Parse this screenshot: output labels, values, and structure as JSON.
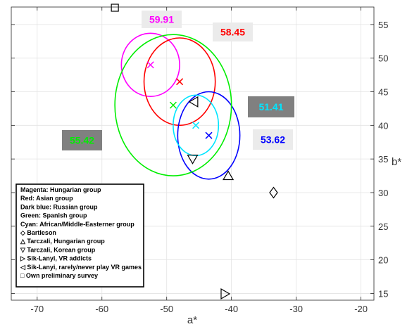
{
  "chart_data": {
    "type": "scatter",
    "title": "",
    "xlabel": "a*",
    "ylabel": "b*",
    "xlim": [
      -74,
      -18
    ],
    "ylim": [
      14,
      57.6
    ],
    "xticks": [
      -70,
      -60,
      -50,
      -40,
      -30,
      -20
    ],
    "yticks": [
      15,
      20,
      25,
      30,
      35,
      40,
      45,
      50,
      55
    ],
    "grid": true,
    "y_axis_side": "right",
    "groups": [
      {
        "name": "Magenta: Hungarian group",
        "color": "#ff00ff",
        "center": [
          -52.5,
          49.0
        ],
        "radius": [
          4.5,
          4.7
        ],
        "value_label": "59.91",
        "label_fill": "#ebebeb",
        "label_text_color": "#ff00ff"
      },
      {
        "name": "Red: Asian group",
        "color": "#ff0000",
        "center": [
          -48.0,
          46.5
        ],
        "radius": [
          5.5,
          6.5
        ],
        "value_label": "58.45",
        "label_fill": "#ebebeb",
        "label_text_color": "#ff0000"
      },
      {
        "name": "Dark blue: Russian group",
        "color": "#0000ff",
        "center": [
          -43.5,
          38.5
        ],
        "radius": [
          4.8,
          6.5
        ],
        "value_label": "53.62",
        "label_fill": "#ebebeb",
        "label_text_color": "#0000ff"
      },
      {
        "name": "Green: Spanish group",
        "color": "#00ee00",
        "center": [
          -49.0,
          43.0
        ],
        "radius": [
          9.0,
          10.5
        ],
        "value_label": "55.42",
        "label_fill": "#808080",
        "label_text_color": "#00ee00"
      },
      {
        "name": "Cyan: African/Middle-Easterner group",
        "color": "#00e5ff",
        "center": [
          -45.5,
          40.0
        ],
        "radius": [
          3.5,
          4.5
        ],
        "value_label": "51.41",
        "label_fill": "#808080",
        "label_text_color": "#00e5ff"
      }
    ],
    "markers": [
      {
        "name": "Bartleson",
        "symbol": "diamond",
        "x": -33.5,
        "y": 30.0
      },
      {
        "name": "Tarczali, Hungarian group",
        "symbol": "triangle-up",
        "x": -40.5,
        "y": 32.5
      },
      {
        "name": "Tarczali, Korean group",
        "symbol": "triangle-down",
        "x": -46.0,
        "y": 35.0
      },
      {
        "name": "Sik-Lanyi, VR addicts",
        "symbol": "triangle-right",
        "x": -41.0,
        "y": 14.2
      },
      {
        "name": "Sik-Lanyi, rarely/never play VR games",
        "symbol": "triangle-left",
        "x": -45.8,
        "y": 43.5
      },
      {
        "name": "Own preliminary survey",
        "symbol": "square",
        "x": -58.0,
        "y": 57.6
      }
    ],
    "legend": {
      "placement": "bottom-left",
      "entries": [
        "Magenta: Hungarian group",
        "Red: Asian group",
        "Dark blue: Russian group",
        "Green: Spanish group",
        "Cyan: African/Middle-Easterner group",
        "◇ Bartleson",
        "△ Tarczali, Hungarian group",
        "▽ Tarczali, Korean group",
        "▷ Sik-Lanyi, VR addicts",
        "◁ Sik-Lanyi, rarely/never play VR games",
        "□ Own preliminary survey"
      ]
    }
  }
}
